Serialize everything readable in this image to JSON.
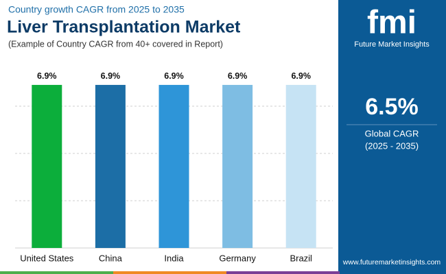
{
  "chart_data": {
    "type": "bar",
    "supertitle": "Country growth CAGR from 2025 to 2035",
    "title": "Liver Transplantation Market",
    "subtitle": "(Example of Country CAGR from 40+ covered in Report)",
    "categories": [
      "United States",
      "China",
      "India",
      "Germany",
      "Brazil"
    ],
    "values": [
      6.9,
      6.9,
      6.9,
      6.9,
      6.9
    ],
    "value_labels": [
      "6.9%",
      "6.9%",
      "6.9%",
      "6.9%",
      "6.9%"
    ],
    "colors": [
      "#0cae3b",
      "#1c6ea6",
      "#2e95d8",
      "#7ebde3",
      "#c6e3f4"
    ],
    "ylim": [
      0,
      8
    ],
    "yticks": [
      0,
      2,
      4,
      6
    ],
    "grid": true
  },
  "sidebar": {
    "logo": "fmi",
    "brand": "Future Market Insights",
    "cagr": "6.5%",
    "cagr_label": "Global CAGR",
    "period": "(2025 - 2035)",
    "website": "www.futuremarketinsights.com"
  }
}
